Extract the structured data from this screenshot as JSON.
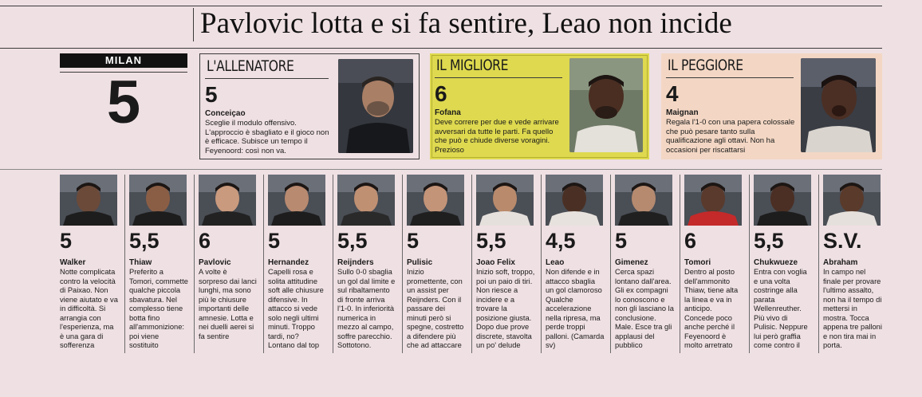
{
  "headline": "Pavlovic lotta e si fa sentire, Leao non incide",
  "team": {
    "name": "MILAN",
    "grade": "5"
  },
  "allenatore": {
    "title": "L'ALLENATORE",
    "grade": "5",
    "name": "Conceiçao",
    "text": "Sceglie il modulo offensivo. L'approccio è sbagliato e il gioco non è efficace. Subisce un tempo il Feyenoord: così non va."
  },
  "migliore": {
    "title": "IL MIGLIORE",
    "grade": "6",
    "name": "Fofana",
    "text": "Deve correre per due e vede arrivare avversari da tutte le parti. Fa quello che può e chiude diverse voragini. Prezioso"
  },
  "peggiore": {
    "title": "IL PEGGIORE",
    "grade": "4",
    "name": "Maignan",
    "text": "Regala l'1-0 con una papera colossale che può pesare tanto sulla qualificazione agli ottavi. Non ha occasioni per riscattarsi"
  },
  "players": [
    {
      "grade": "5",
      "name": "Walker",
      "text": "Notte complicata contro la velocità di Paixao. Non viene aiutato e va in difficoltà. Si arrangia con l'esperienza, ma è una gara di sofferenza",
      "skin": "#6b4a3a",
      "shirt": "#1d1d1d"
    },
    {
      "grade": "5,5",
      "name": "Thiaw",
      "text": "Preferito a Tomori, commette qualche piccola sbavatura. Nel complesso tiene botta fino all'ammonizione: poi viene sostituito",
      "skin": "#8a5e45",
      "shirt": "#1d1d1d"
    },
    {
      "grade": "6",
      "name": "Pavlovic",
      "text": "A volte è sorpreso dai lanci lunghi, ma sono più le chiusure importanti delle amnesie. Lotta e nei duelli aerei si fa sentire",
      "skin": "#c99a7e",
      "shirt": "#222222"
    },
    {
      "grade": "5",
      "name": "Hernandez",
      "text": "Capelli rosa e solita attitudine soft alle chiusure difensive. In attacco si vede solo negli ultimi minuti. Troppo tardi, no? Lontano dal top",
      "skin": "#b88a70",
      "shirt": "#1d1d1d"
    },
    {
      "grade": "5,5",
      "name": "Reijnders",
      "text": "Sullo 0-0 sbaglia un gol dal limite e sul ribaltamento di fronte arriva l'1-0. In inferiorità numerica in mezzo al campo, soffre parecchio. Sottotono.",
      "skin": "#c09073",
      "shirt": "#2a2a2a"
    },
    {
      "grade": "5",
      "name": "Pulisic",
      "text": "Inizio promettente, con un assist per Reijnders. Con il passare dei minuti però si spegne, costretto a difendere più che ad attaccare",
      "skin": "#c49478",
      "shirt": "#1f1f1f"
    },
    {
      "grade": "5,5",
      "name": "Joao Felix",
      "text": "Inizio soft, troppo, poi un paio di tiri. Non riesce a incidere e a trovare la posizione giusta. Dopo due prove discrete, stavolta un po' delude",
      "skin": "#b98a6c",
      "shirt": "#e6e0dc"
    },
    {
      "grade": "4,5",
      "name": "Leao",
      "text": "Non difende e in attacco sbaglia un gol clamoroso Qualche accelerazione nella ripresa, ma perde troppi palloni. (Camarda sv)",
      "skin": "#4a3024",
      "shirt": "#e8e2de"
    },
    {
      "grade": "5",
      "name": "Gimenez",
      "text": "Cerca spazi lontano dall'area. Gli ex compagni lo conoscono e non gli lasciano la conclusione. Male. Esce tra gli applausi del pubblico",
      "skin": "#b58a6f",
      "shirt": "#202020"
    },
    {
      "grade": "6",
      "name": "Tomori",
      "text": "Dentro al posto dell'ammonito Thiaw, tiene alta la linea e va in anticipo. Concede poco anche perché il Feyenoord è molto arretrato",
      "skin": "#5a3a2c",
      "shirt": "#c42a2a"
    },
    {
      "grade": "5,5",
      "name": "Chukwueze",
      "text": "Entra con voglia e una volta costringe alla parata Wellenreuther. Più vivo di Pulisic. Neppure lui però graffia come contro il Parma",
      "skin": "#4b2f24",
      "shirt": "#1d1d1d"
    },
    {
      "grade": "S.V.",
      "name": "Abraham",
      "text": "In campo nel finale per provare l'ultimo assalto, non ha il tempo di mettersi in mostra. Tocca appena tre palloni e non tira mai in porta.",
      "skin": "#5a3a2a",
      "shirt": "#e6e0dc"
    }
  ]
}
